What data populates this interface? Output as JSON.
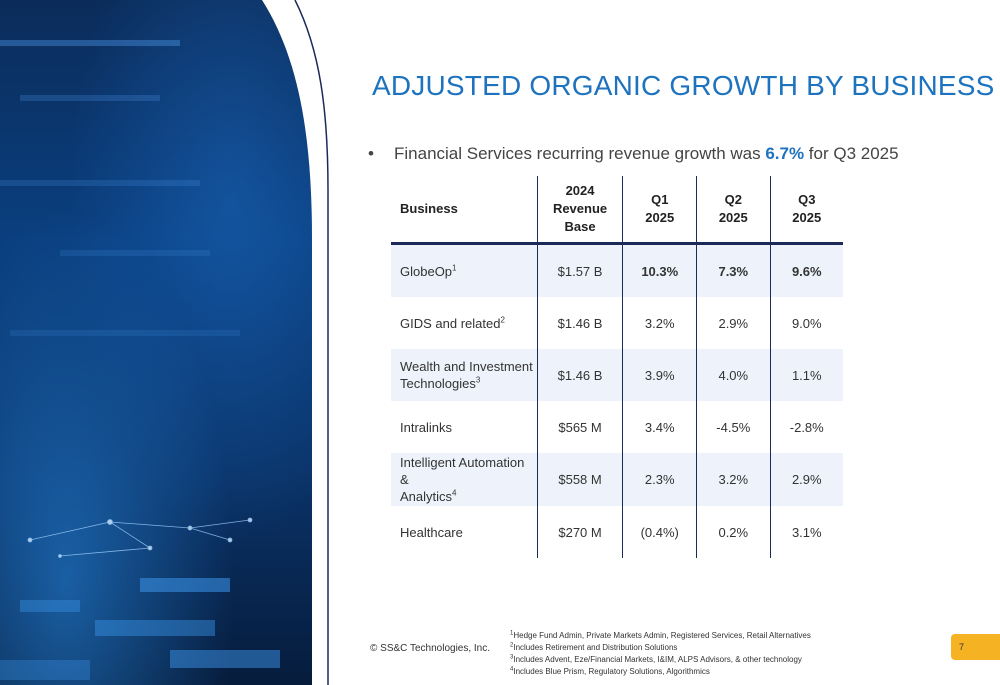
{
  "title": "ADJUSTED ORGANIC GROWTH BY BUSINESS",
  "bullet": {
    "marker": "•",
    "text_before": "Financial Services recurring revenue growth was ",
    "highlight": "6.7%",
    "text_after": " for Q3 2025"
  },
  "table": {
    "headers": {
      "business": "Business",
      "base_l1": "2024",
      "base_l2": "Revenue",
      "base_l3": "Base",
      "q1_l1": "Q1",
      "q1_l2": "2025",
      "q2_l1": "Q2",
      "q2_l2": "2025",
      "q3_l1": "Q3",
      "q3_l2": "2025"
    },
    "rows": [
      {
        "name_l1": "GlobeOp",
        "name_l2": "",
        "sup": "1",
        "base": "$1.57 B",
        "q1": "10.3%",
        "q2": "7.3%",
        "q3": "9.6%"
      },
      {
        "name_l1": "GIDS and related",
        "name_l2": "",
        "sup": "2",
        "base": "$1.46 B",
        "q1": "3.2%",
        "q2": "2.9%",
        "q3": "9.0%"
      },
      {
        "name_l1": "Wealth and Investment",
        "name_l2": "Technologies",
        "sup": "3",
        "base": "$1.46 B",
        "q1": "3.9%",
        "q2": "4.0%",
        "q3": "1.1%"
      },
      {
        "name_l1": "Intralinks",
        "name_l2": "",
        "sup": "",
        "base": "$565 M",
        "q1": "3.4%",
        "q2": "-4.5%",
        "q3": "-2.8%"
      },
      {
        "name_l1": "Intelligent Automation &",
        "name_l2": "Analytics",
        "sup": "4",
        "base": "$558 M",
        "q1": "2.3%",
        "q2": "3.2%",
        "q3": "2.9%"
      },
      {
        "name_l1": "Healthcare",
        "name_l2": "",
        "sup": "",
        "base": "$270 M",
        "q1": "(0.4%)",
        "q2": "0.2%",
        "q3": "3.1%"
      }
    ]
  },
  "copyright": "© SS&C Technologies, Inc.",
  "footnotes": [
    {
      "num": "1",
      "text": "Hedge Fund Admin, Private Markets Admin, Registered Services, Retail Alternatives"
    },
    {
      "num": "2",
      "text": "Includes Retirement and Distribution Solutions"
    },
    {
      "num": "3",
      "text": "Includes Advent, Eze/Financial Markets, I&IM, ALPS Advisors, & other technology"
    },
    {
      "num": "4",
      "text": "Includes Blue Prism, Regulatory Solutions, Algorithmics"
    }
  ],
  "page_number": "7",
  "colors": {
    "title_blue": "#1e73be",
    "table_rule": "#1c2a5a",
    "row_shade": "#eef3fb",
    "page_badge": "#f5b223"
  }
}
